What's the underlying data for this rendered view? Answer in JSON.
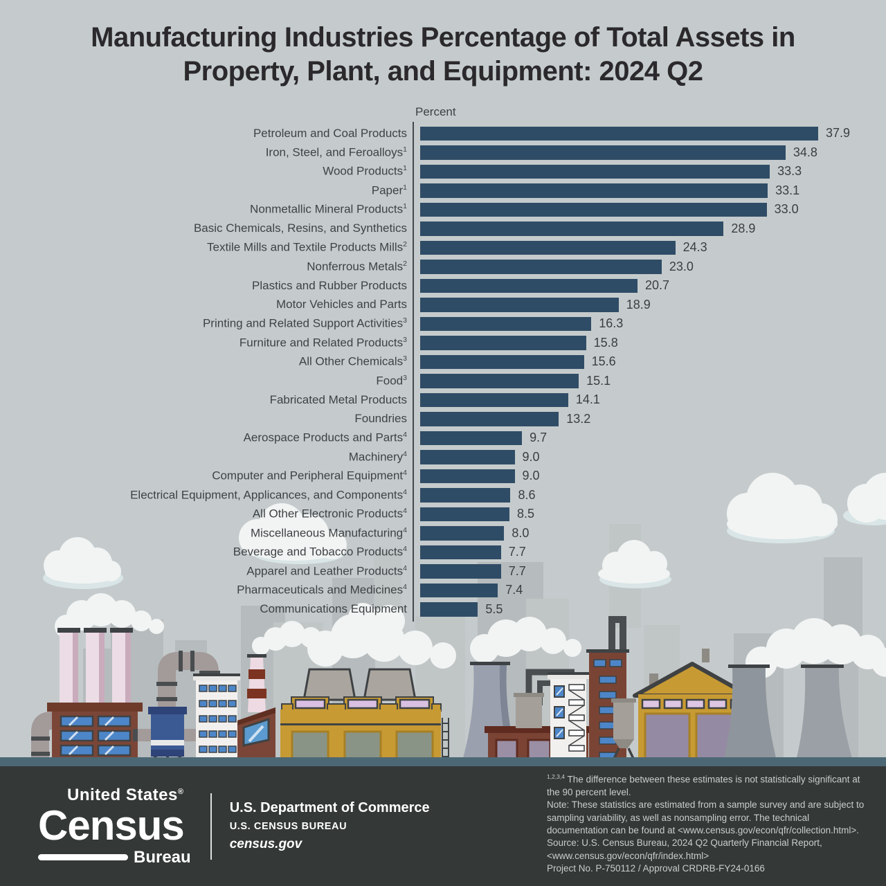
{
  "title": {
    "line1": "Manufacturing Industries Percentage of Total Assets in",
    "line2": "Property, Plant, and Equipment: 2024 Q2"
  },
  "chart_data": {
    "type": "bar",
    "orientation": "horizontal",
    "title": "Manufacturing Industries Percentage of Total Assets in Property, Plant, and Equipment: 2024 Q2",
    "axis_label": "Percent",
    "xlim": [
      0,
      40
    ],
    "bar_color": "#2f4c66",
    "grid": false,
    "legend": false,
    "items": [
      {
        "label": "Petroleum and Coal Products",
        "sup": "",
        "value": 37.9,
        "display": "37.9"
      },
      {
        "label": "Iron, Steel, and Feroalloys",
        "sup": "1",
        "value": 34.8,
        "display": "34.8"
      },
      {
        "label": "Wood Products",
        "sup": "1",
        "value": 33.3,
        "display": "33.3"
      },
      {
        "label": "Paper",
        "sup": "1",
        "value": 33.1,
        "display": "33.1"
      },
      {
        "label": "Nonmetallic Mineral Products",
        "sup": "1",
        "value": 33.0,
        "display": "33.0"
      },
      {
        "label": "Basic Chemicals, Resins, and Synthetics",
        "sup": "",
        "value": 28.9,
        "display": "28.9"
      },
      {
        "label": "Textile Mills and Textile Products Mills",
        "sup": "2",
        "value": 24.3,
        "display": "24.3"
      },
      {
        "label": "Nonferrous Metals",
        "sup": "2",
        "value": 23.0,
        "display": "23.0"
      },
      {
        "label": "Plastics and Rubber Products",
        "sup": "",
        "value": 20.7,
        "display": "20.7"
      },
      {
        "label": "Motor Vehicles and Parts",
        "sup": "",
        "value": 18.9,
        "display": "18.9"
      },
      {
        "label": "Printing and Related Support Activities",
        "sup": "3",
        "value": 16.3,
        "display": "16.3"
      },
      {
        "label": "Furniture and Related Products",
        "sup": "3",
        "value": 15.8,
        "display": "15.8"
      },
      {
        "label": "All Other Chemicals",
        "sup": "3",
        "value": 15.6,
        "display": "15.6"
      },
      {
        "label": "Food",
        "sup": "3",
        "value": 15.1,
        "display": "15.1"
      },
      {
        "label": "Fabricated Metal Products",
        "sup": "",
        "value": 14.1,
        "display": "14.1"
      },
      {
        "label": "Foundries",
        "sup": "",
        "value": 13.2,
        "display": "13.2"
      },
      {
        "label": "Aerospace Products and Parts",
        "sup": "4",
        "value": 9.7,
        "display": "9.7"
      },
      {
        "label": "Machinery",
        "sup": "4",
        "value": 9.0,
        "display": "9.0"
      },
      {
        "label": "Computer and Peripheral Equipment",
        "sup": "4",
        "value": 9.0,
        "display": "9.0"
      },
      {
        "label": "Electrical Equipment, Applicances, and Components",
        "sup": "4",
        "value": 8.6,
        "display": "8.6"
      },
      {
        "label": "All Other Electronic Products",
        "sup": "4",
        "value": 8.5,
        "display": "8.5"
      },
      {
        "label": "Miscellaneous Manufacturing",
        "sup": "4",
        "value": 8.0,
        "display": "8.0"
      },
      {
        "label": "Beverage and Tobacco Products",
        "sup": "4",
        "value": 7.7,
        "display": "7.7"
      },
      {
        "label": "Apparel and Leather Products",
        "sup": "4",
        "value": 7.7,
        "display": "7.7"
      },
      {
        "label": "Pharmaceuticals and Medicines",
        "sup": "4",
        "value": 7.4,
        "display": "7.4"
      },
      {
        "label": "Communications Equipment",
        "sup": "",
        "value": 5.5,
        "display": "5.5"
      }
    ]
  },
  "footer": {
    "logo": {
      "top": "United States",
      "reg": "®",
      "name": "Census",
      "sub": "Bureau"
    },
    "commerce": {
      "line1": "U.S. Department of Commerce",
      "line2": "U.S. CENSUS BUREAU",
      "line3": "census.gov"
    },
    "notes": {
      "sup": "1,2,3,4",
      "note1": " The difference between these estimates is not statistically significant at the 90 percent level.",
      "note2": "Note: These statistics are estimated from a sample survey and are subject to sampling variability, as well as nonsampling error. The technical documentation can be found at <www.census.gov/econ/qfr/collection.html>.",
      "source": "Source: U.S. Census Bureau, 2024 Q2 Quarterly Financial Report, <www.census.gov/econ/qfr/index.html>",
      "project": "Project No. P-750112 / Approval CRDRB-FY24-0166"
    }
  },
  "colors": {
    "background": "#c5cbcc",
    "bar": "#2f4c66",
    "title_text": "#2b292b",
    "label_text": "#3e4244",
    "footer_bg": "#343836",
    "footer_text": "#c9cdcc",
    "ground": "#4c6875"
  }
}
